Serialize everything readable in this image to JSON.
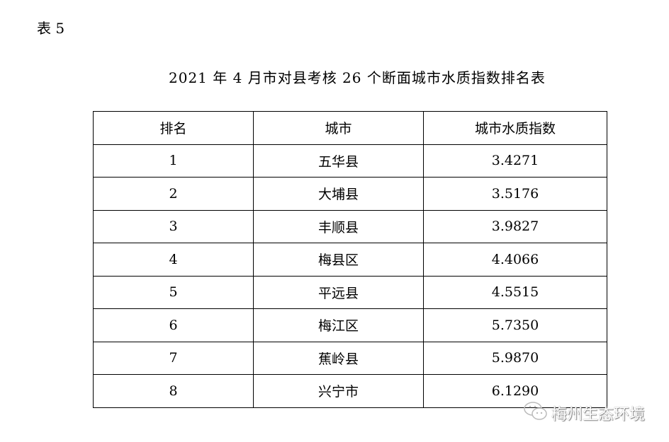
{
  "label": "表 5",
  "title": "2021 年 4 月市对县考核 26 个断面城市水质指数排名表",
  "table": {
    "headers": [
      "排名",
      "城市",
      "城市水质指数"
    ],
    "rows": [
      [
        "1",
        "五华县",
        "3.4271"
      ],
      [
        "2",
        "大埔县",
        "3.5176"
      ],
      [
        "3",
        "丰顺县",
        "3.9827"
      ],
      [
        "4",
        "梅县区",
        "4.4066"
      ],
      [
        "5",
        "平远县",
        "4.5515"
      ],
      [
        "6",
        "梅江区",
        "5.7350"
      ],
      [
        "7",
        "蕉岭县",
        "5.9870"
      ],
      [
        "8",
        "兴宁市",
        "6.1290"
      ]
    ]
  },
  "watermark": {
    "text": "梅州生态环境",
    "icon": "wechat-icon"
  }
}
